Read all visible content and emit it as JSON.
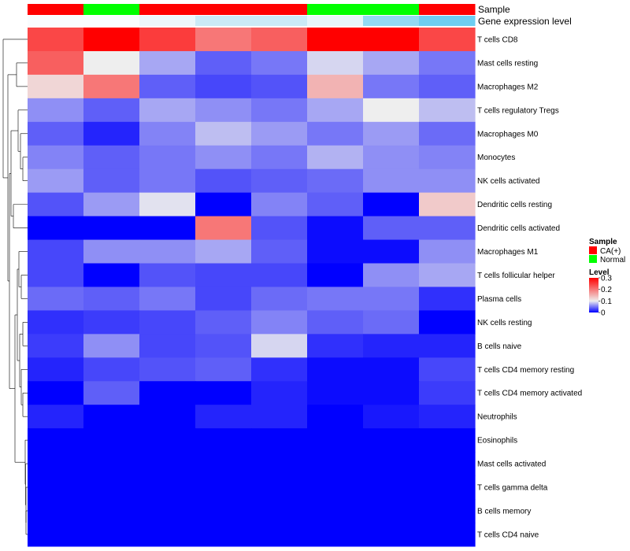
{
  "chart_data": {
    "type": "heatmap",
    "title": "",
    "annotations": {
      "sample_label": "Sample",
      "gene_label": "Gene expression level",
      "sample_groups": [
        "CA(+)",
        "Normal",
        "CA(+)",
        "CA(+)",
        "CA(+)",
        "Normal",
        "Normal",
        "CA(+)"
      ],
      "gene_levels": [
        0.05,
        0.05,
        0.15,
        0.4,
        0.4,
        0.2,
        0.7,
        0.9
      ]
    },
    "rows": [
      "T cells CD8",
      "Mast cells resting",
      "Macrophages M2",
      "T cells regulatory  Tregs",
      "Macrophages M0",
      "Monocytes",
      "NK cells activated",
      "Dendritic cells resting",
      "Dendritic cells activated",
      "Macrophages M1",
      "T cells follicular helper",
      "Plasma cells",
      "NK cells resting",
      "B cells naive",
      "T cells CD4 memory resting",
      "T cells CD4 memory activated",
      "Neutrophils",
      "Eosinophils",
      "Mast cells activated",
      "T cells gamma delta",
      "B cells memory",
      "T cells CD4 naive"
    ],
    "values": [
      [
        0.24,
        0.3,
        0.25,
        0.2,
        0.22,
        0.3,
        0.3,
        0.24
      ],
      [
        0.22,
        0.1,
        0.07,
        0.04,
        0.05,
        0.09,
        0.07,
        0.05
      ],
      [
        0.12,
        0.2,
        0.04,
        0.03,
        0.035,
        0.15,
        0.05,
        0.04
      ],
      [
        0.06,
        0.04,
        0.07,
        0.06,
        0.05,
        0.07,
        0.1,
        0.08
      ],
      [
        0.04,
        0.015,
        0.055,
        0.08,
        0.065,
        0.05,
        0.065,
        0.045
      ],
      [
        0.055,
        0.04,
        0.05,
        0.06,
        0.05,
        0.075,
        0.06,
        0.055
      ],
      [
        0.065,
        0.04,
        0.05,
        0.035,
        0.04,
        0.045,
        0.06,
        0.06
      ],
      [
        0.035,
        0.065,
        0.095,
        0.0,
        0.055,
        0.04,
        0.0,
        0.13
      ],
      [
        0.0,
        0.0,
        0.0,
        0.2,
        0.035,
        0.005,
        0.04,
        0.04
      ],
      [
        0.03,
        0.06,
        0.06,
        0.07,
        0.04,
        0.005,
        0.005,
        0.06
      ],
      [
        0.03,
        0.0,
        0.035,
        0.03,
        0.03,
        0.0,
        0.06,
        0.07
      ],
      [
        0.045,
        0.04,
        0.05,
        0.03,
        0.045,
        0.05,
        0.05,
        0.02
      ],
      [
        0.02,
        0.025,
        0.03,
        0.04,
        0.055,
        0.04,
        0.045,
        0.0
      ],
      [
        0.025,
        0.06,
        0.03,
        0.035,
        0.09,
        0.02,
        0.015,
        0.015
      ],
      [
        0.015,
        0.03,
        0.035,
        0.04,
        0.02,
        0.005,
        0.005,
        0.03
      ],
      [
        0.0,
        0.04,
        0.0,
        0.0,
        0.015,
        0.005,
        0.005,
        0.025
      ],
      [
        0.015,
        0.0,
        0.0,
        0.015,
        0.015,
        0.0,
        0.01,
        0.015
      ],
      [
        0.0,
        0.0,
        0.0,
        0.0,
        0.0,
        0.0,
        0.0,
        0.0
      ],
      [
        0.0,
        0.0,
        0.0,
        0.0,
        0.0,
        0.0,
        0.0,
        0.0
      ],
      [
        0.0,
        0.0,
        0.0,
        0.0,
        0.0,
        0.0,
        0.0,
        0.0
      ],
      [
        0.0,
        0.0,
        0.0,
        0.0,
        0.0,
        0.0,
        0.0,
        0.0
      ],
      [
        0.0,
        0.0,
        0.0,
        0.0,
        0.0,
        0.0,
        0.0,
        0.0
      ]
    ],
    "legend": {
      "sample_title": "Sample",
      "sample_entries": [
        {
          "label": "CA(+)",
          "color": "#FF0000"
        },
        {
          "label": "Normal",
          "color": "#00FF00"
        }
      ],
      "level_title": "Level",
      "level_ticks": [
        "0.3",
        "0.2",
        "0.1",
        "0"
      ],
      "level_tick_values": [
        0.3,
        0.2,
        0.1,
        0.0
      ],
      "position": "right"
    },
    "colors": {
      "low": "#0000FF",
      "mid": "#EEEEEE",
      "high": "#FF0000",
      "vmin": 0.0,
      "vmid": 0.1,
      "vmax": 0.3,
      "gene_light": "#D8EEF7",
      "gene_dark": "#5BC8F0"
    }
  }
}
